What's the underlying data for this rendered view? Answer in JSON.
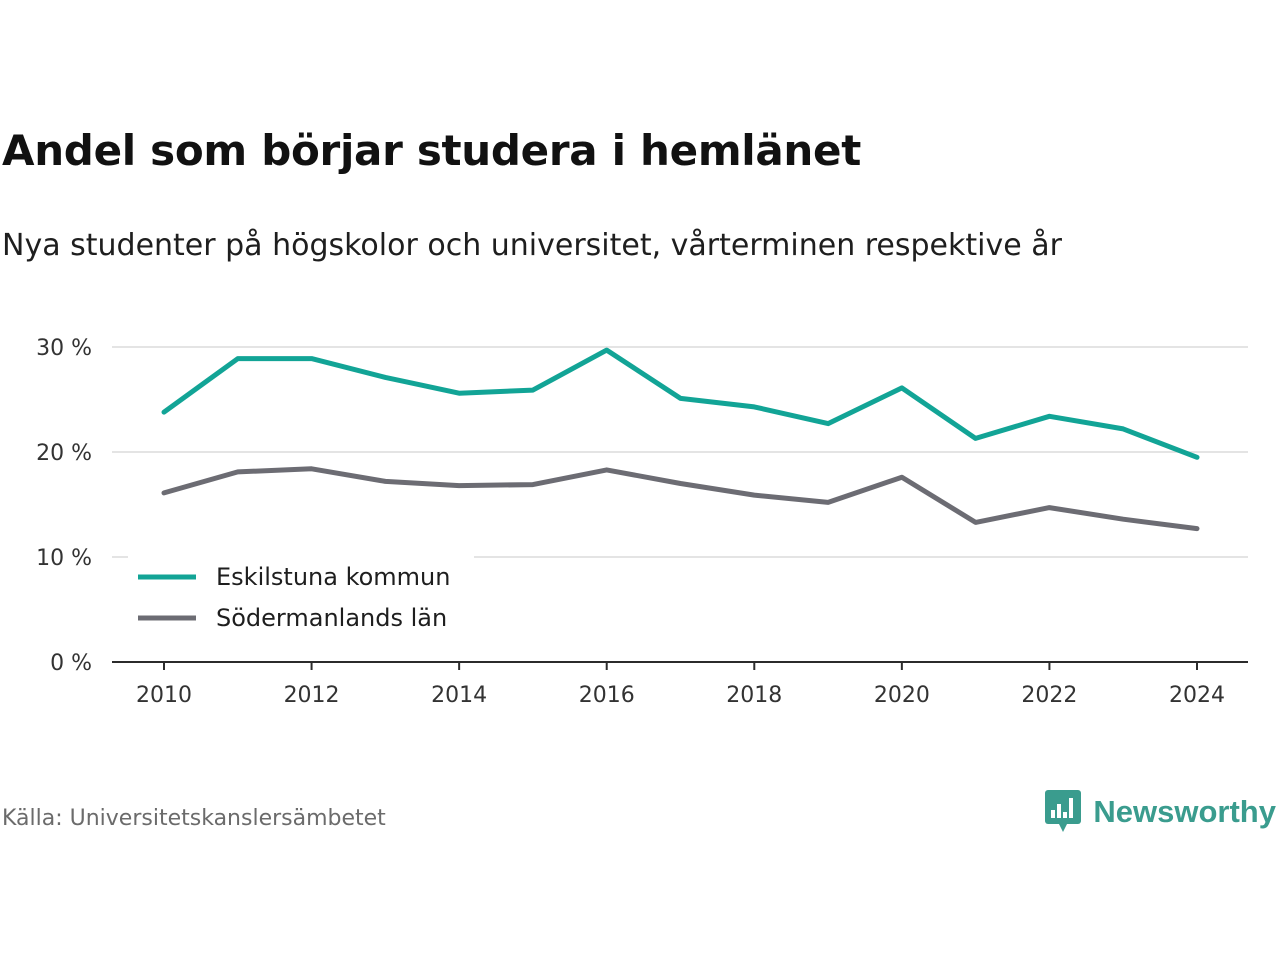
{
  "chart_data": {
    "type": "line",
    "title": "Andel som börjar studera i hemlänet",
    "subtitle": "Nya studenter på högskolor och universitet, vårterminen respektive år",
    "source": "Källa: Universitetskanslersämbetet",
    "brand": "Newsworthy",
    "x": [
      2010,
      2011,
      2012,
      2013,
      2014,
      2015,
      2016,
      2017,
      2018,
      2019,
      2020,
      2021,
      2022,
      2023,
      2024
    ],
    "x_ticks": [
      2010,
      2012,
      2014,
      2016,
      2018,
      2020,
      2022,
      2024
    ],
    "ylim": [
      0,
      30
    ],
    "y_ticks": [
      0,
      10,
      20,
      30
    ],
    "y_tick_suffix": " %",
    "grid": true,
    "legend_position": "bottom-left",
    "series": [
      {
        "name": "Eskilstuna kommun",
        "color": "#12a496",
        "values": [
          23.8,
          28.9,
          28.9,
          27.1,
          25.6,
          25.9,
          29.7,
          25.1,
          24.3,
          22.7,
          26.1,
          21.3,
          23.4,
          22.2,
          19.5
        ]
      },
      {
        "name": "Södermanlands län",
        "color": "#6c6c73",
        "values": [
          16.1,
          18.1,
          18.4,
          17.2,
          16.8,
          16.9,
          18.3,
          17.0,
          15.9,
          15.2,
          17.6,
          13.3,
          14.7,
          13.6,
          12.7
        ]
      }
    ]
  }
}
